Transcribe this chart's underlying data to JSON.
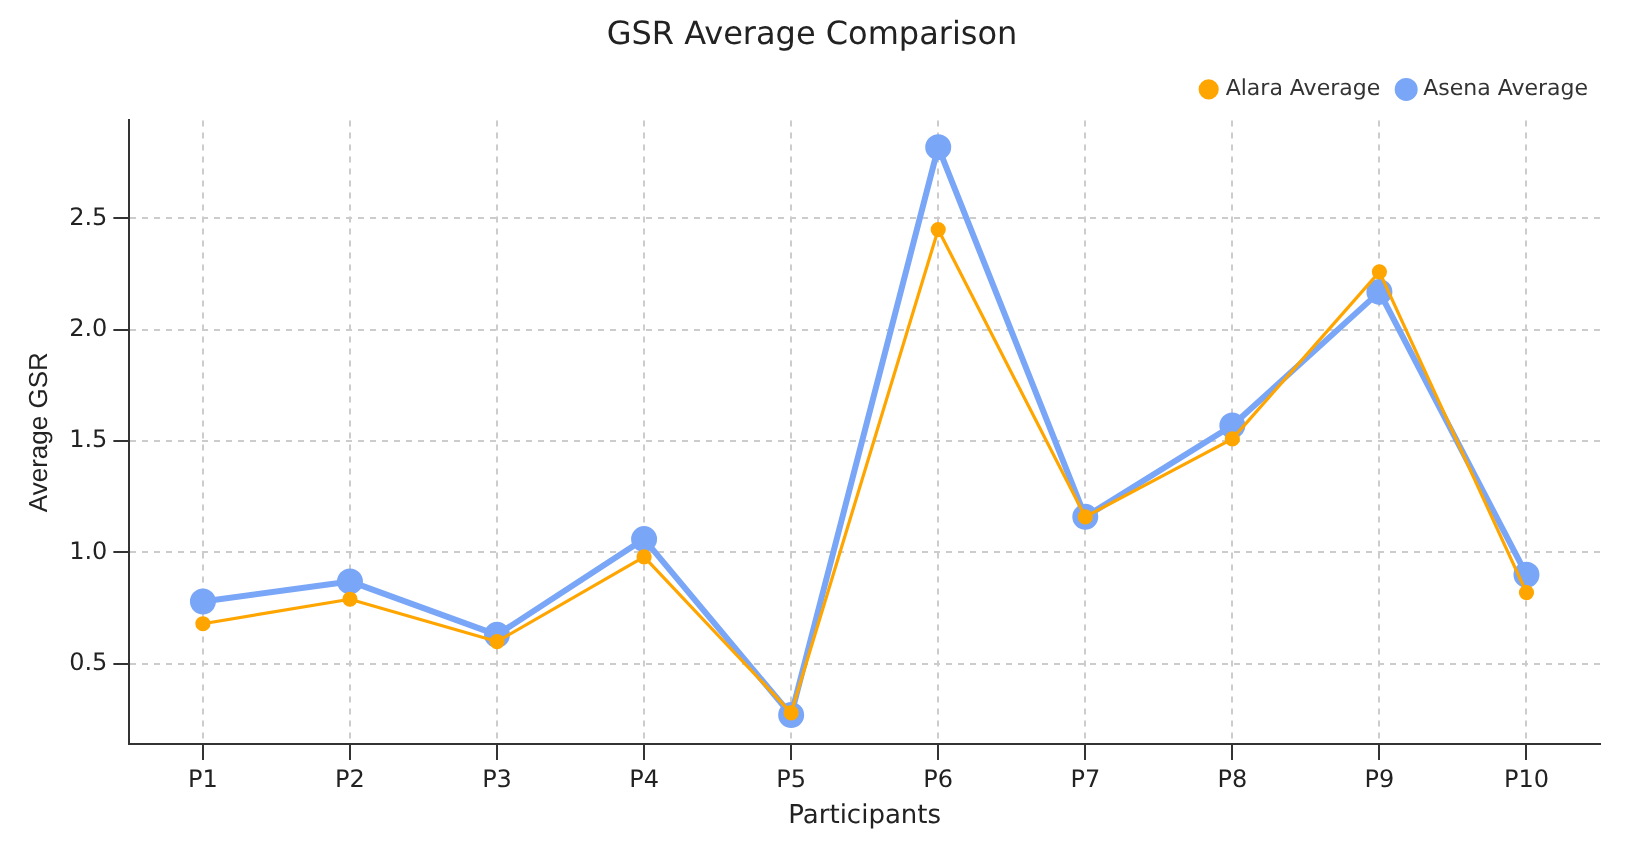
{
  "chart_data": {
    "type": "line",
    "title": "GSR Average Comparison",
    "xlabel": "Participants",
    "ylabel": "Average GSR",
    "categories": [
      "P1",
      "P2",
      "P3",
      "P4",
      "P5",
      "P6",
      "P7",
      "P8",
      "P9",
      "P10"
    ],
    "series": [
      {
        "name": "Alara Average",
        "color": "#ffa500",
        "values": [
          0.68,
          0.79,
          0.6,
          0.98,
          0.28,
          2.45,
          1.16,
          1.51,
          2.26,
          0.82
        ]
      },
      {
        "name": "Asena Average",
        "color": "#7aa6f7",
        "values": [
          0.78,
          0.87,
          0.63,
          1.06,
          0.27,
          2.82,
          1.16,
          1.57,
          2.17,
          0.9
        ]
      }
    ],
    "ylim": [
      0.14,
      2.94
    ],
    "yticks": [
      0.5,
      {
        "value": 1,
        "label": "1.0"
      },
      1.5,
      {
        "value": 2,
        "label": "2.0"
      },
      2.5
    ],
    "grid": true,
    "legend": "top right",
    "marker": "circle",
    "line_style": "solid"
  }
}
